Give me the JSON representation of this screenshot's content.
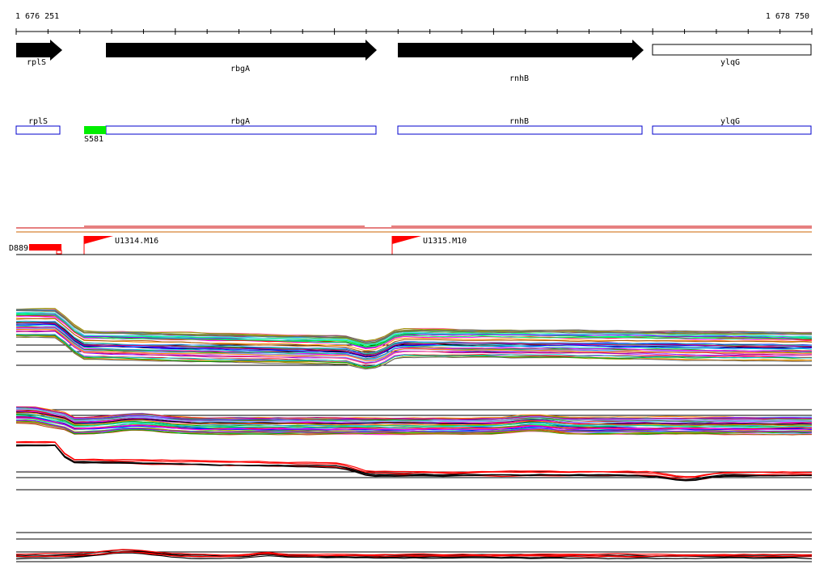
{
  "ruler": {
    "start_label": "1 676 251",
    "end_label": "1 678 750"
  },
  "genes": [
    {
      "name": "rplS",
      "strand": "filled"
    },
    {
      "name": "rbgA",
      "strand": "filled"
    },
    {
      "name": "rnhB",
      "strand": "filled"
    },
    {
      "name": "ylqG",
      "strand": "open"
    }
  ],
  "annotation_track": {
    "boxes": [
      "rplS",
      "rbgA",
      "rnhB",
      "ylqG"
    ],
    "marker": {
      "label": "S581",
      "color": "#00ee00"
    }
  },
  "features": {
    "block": {
      "label": "D889",
      "color": "#ff0000"
    },
    "flags": [
      {
        "label": "U1314.M16",
        "color": "#ff0000"
      },
      {
        "label": "U1315.M10",
        "color": "#ff0000"
      }
    ]
  },
  "colors": {
    "gene_fill": "#000000",
    "box_stroke": "#0000cc",
    "accent_red": "#ff0000",
    "accent_green": "#00ee00",
    "axis": "#000000"
  }
}
